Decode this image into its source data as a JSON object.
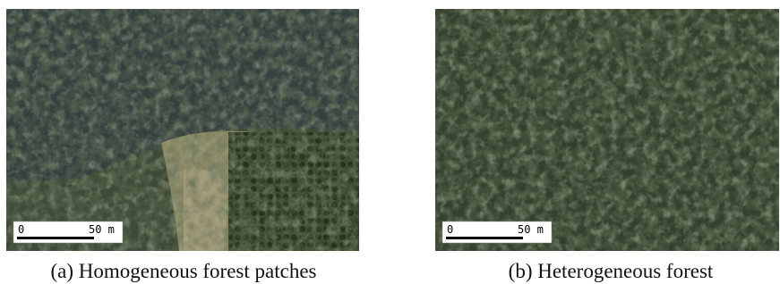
{
  "figures": [
    {
      "caption": "(a) Homogeneous forest patches",
      "scale_bar": {
        "start": "0",
        "end": "50 m"
      }
    },
    {
      "caption": "(b) Heterogeneous forest",
      "scale_bar": {
        "start": "0",
        "end": "50 m"
      }
    }
  ]
}
